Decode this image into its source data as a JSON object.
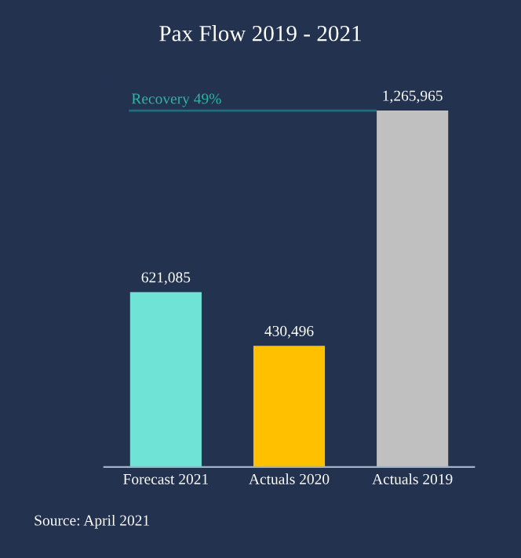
{
  "chart_data": {
    "type": "bar",
    "title": "Pax Flow 2019 - 2021",
    "categories": [
      "Forecast 2021",
      "Actuals 2020",
      "Actuals 2019"
    ],
    "values": [
      621085,
      430496,
      1265965
    ],
    "colors": [
      "#6fe3d6",
      "#ffc000",
      "#c0c0c0"
    ],
    "value_labels": [
      "621,085",
      "430,496",
      "1,265,965"
    ],
    "grid": false,
    "legend": false,
    "ref_lines": [
      {
        "axis": "y",
        "value": 1265965,
        "label": "Recovery 49%",
        "color": "#1f6e78"
      }
    ],
    "annotations": [
      "Source: April 2021"
    ]
  }
}
